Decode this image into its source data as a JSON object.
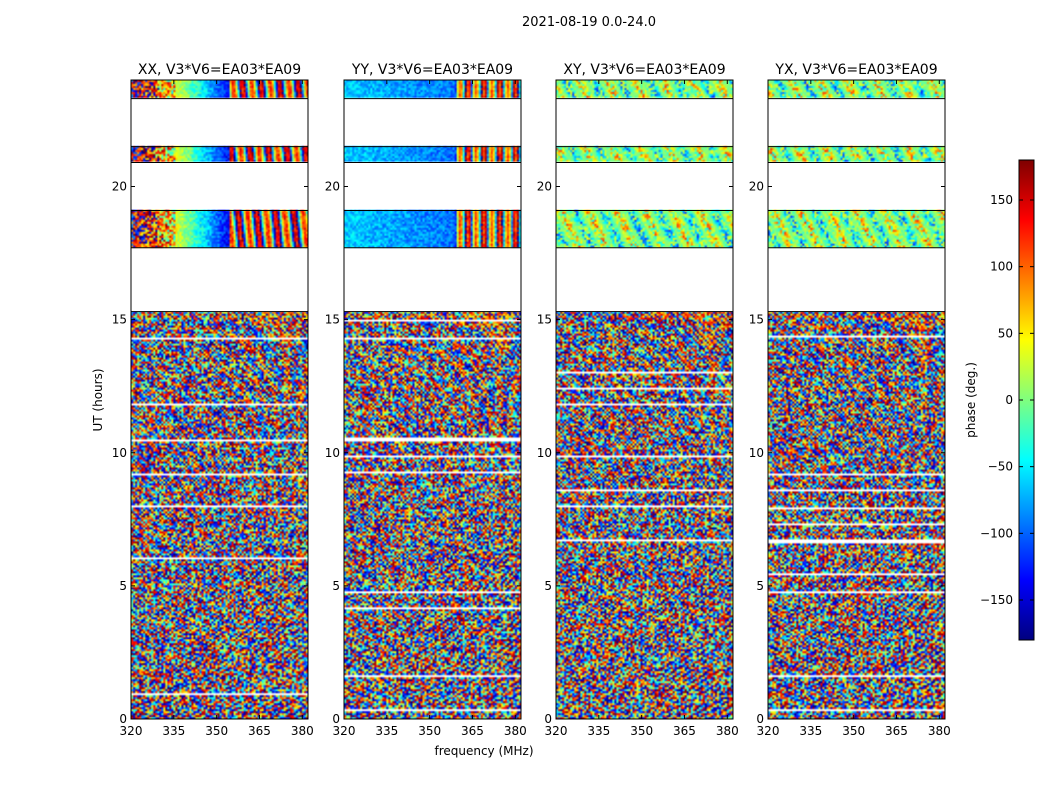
{
  "chart_data": {
    "type": "heatmap",
    "suptitle": "2021-08-19 0.0-24.0",
    "xlabel": "frequency (MHz)",
    "ylabel": "UT (hours)",
    "xlim": [
      320,
      382
    ],
    "ylim": [
      0,
      24
    ],
    "xticks": [
      320,
      335,
      350,
      365,
      380
    ],
    "yticks": [
      0,
      5,
      10,
      15,
      20
    ],
    "colorbar": {
      "label": "phase (deg.)",
      "range": [
        -180,
        180
      ],
      "ticks": [
        150,
        100,
        50,
        0,
        -50,
        -100,
        -150
      ],
      "tick_labels": [
        "150",
        "100",
        "50",
        "0",
        "−50",
        "−100",
        "−150"
      ],
      "stops": [
        "#00007f",
        "#0000ff",
        "#007fff",
        "#00ffff",
        "#7fff7f",
        "#ffff00",
        "#ff7f00",
        "#ff0000",
        "#7f0000"
      ]
    },
    "data_hour_ranges": [
      [
        0,
        15.3
      ],
      [
        17.7,
        19.1
      ],
      [
        20.9,
        21.5
      ],
      [
        23.3,
        24
      ]
    ],
    "gap_hour_ranges": [
      [
        15.3,
        17.7
      ],
      [
        19.1,
        20.9
      ],
      [
        21.5,
        23.3
      ]
    ],
    "panels": [
      {
        "title": "XX, V3*V6=EA03*EA09",
        "pol": "XX"
      },
      {
        "title": "YY, V3*V6=EA03*EA09",
        "pol": "YY"
      },
      {
        "title": "XY, V3*V6=EA03*EA09",
        "pol": "XY"
      },
      {
        "title": "YX, V3*V6=EA03*EA09",
        "pol": "YX"
      }
    ]
  }
}
